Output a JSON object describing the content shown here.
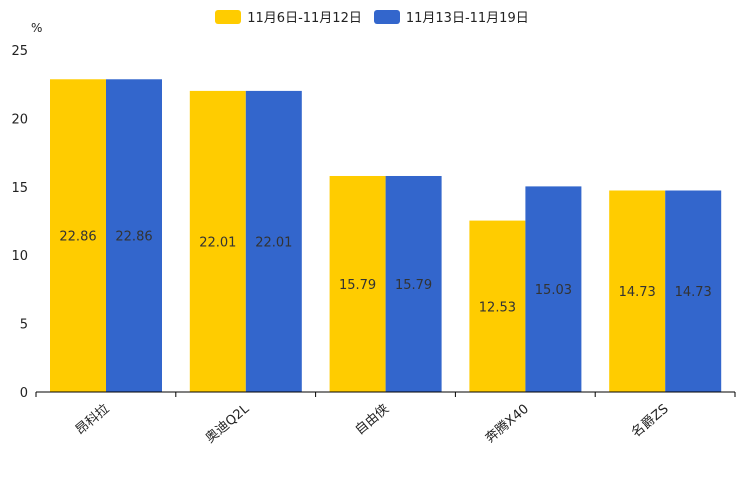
{
  "chart_data": {
    "type": "bar",
    "unit_label": "%",
    "categories": [
      "昂科拉",
      "奥迪Q2L",
      "自由侠",
      "奔腾X40",
      "名爵ZS"
    ],
    "series": [
      {
        "name": "11月6日-11月12日",
        "color": "#FFCC00",
        "values": [
          22.86,
          22.01,
          15.79,
          12.53,
          14.73
        ]
      },
      {
        "name": "11月13日-11月19日",
        "color": "#3366CC",
        "values": [
          22.86,
          22.01,
          15.79,
          15.03,
          14.73
        ]
      }
    ],
    "ylim": [
      0,
      25
    ],
    "yticks": [
      "0",
      "5",
      "10",
      "15",
      "20",
      "25"
    ],
    "legend_position": "top-center"
  }
}
